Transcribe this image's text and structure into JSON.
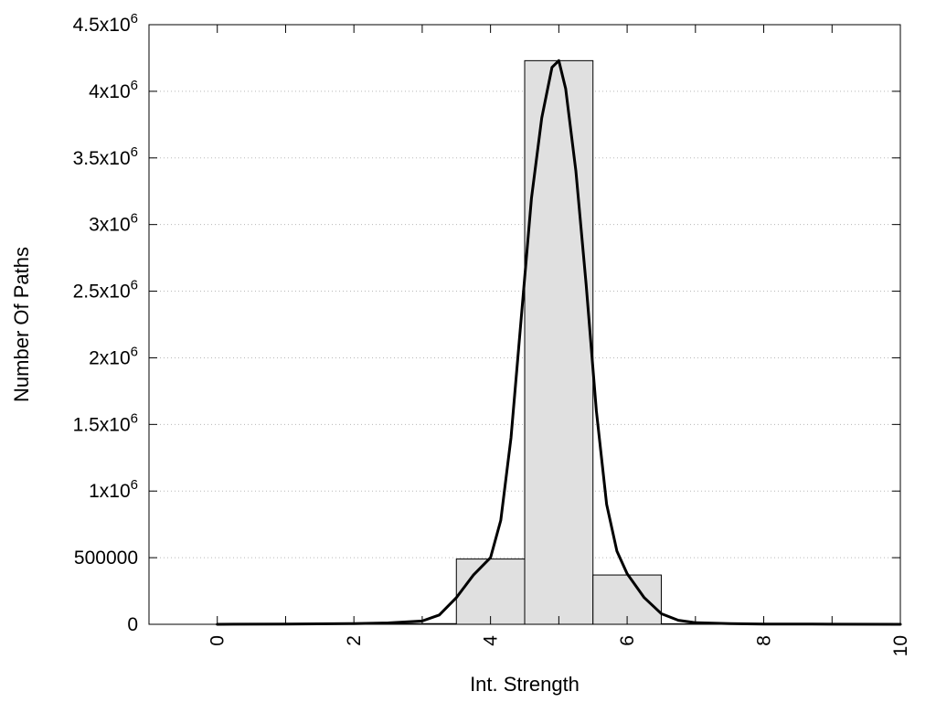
{
  "chart_data": {
    "type": "bar",
    "xlabel": "Int. Strength",
    "ylabel": "Number Of Paths",
    "xlim": [
      -1,
      10
    ],
    "ylim": [
      0,
      4500000
    ],
    "x_ticks": [
      {
        "value": 0,
        "label": "0"
      },
      {
        "value": 2,
        "label": "2"
      },
      {
        "value": 4,
        "label": "4"
      },
      {
        "value": 6,
        "label": "6"
      },
      {
        "value": 8,
        "label": "8"
      },
      {
        "value": 10,
        "label": "10"
      }
    ],
    "x_minor_ticks": [
      1,
      3,
      5,
      7,
      9
    ],
    "y_ticks": [
      {
        "value": 0,
        "label": "0",
        "sup": ""
      },
      {
        "value": 500000,
        "label": "500000",
        "sup": ""
      },
      {
        "value": 1000000,
        "label": "1x10",
        "sup": "6"
      },
      {
        "value": 1500000,
        "label": "1.5x10",
        "sup": "6"
      },
      {
        "value": 2000000,
        "label": "2x10",
        "sup": "6"
      },
      {
        "value": 2500000,
        "label": "2.5x10",
        "sup": "6"
      },
      {
        "value": 3000000,
        "label": "3x10",
        "sup": "6"
      },
      {
        "value": 3500000,
        "label": "3.5x10",
        "sup": "6"
      },
      {
        "value": 4000000,
        "label": "4x10",
        "sup": "6"
      },
      {
        "value": 4500000,
        "label": "4.5x10",
        "sup": "6"
      }
    ],
    "grid": "horizontal dotted",
    "bar_width": 1,
    "bars": [
      {
        "x": 3,
        "value": 5000
      },
      {
        "x": 4,
        "value": 490000
      },
      {
        "x": 5,
        "value": 4230000
      },
      {
        "x": 6,
        "value": 370000
      },
      {
        "x": 7,
        "value": 4000
      }
    ],
    "curve": {
      "x": [
        0,
        1,
        2,
        2.5,
        3,
        3.25,
        3.5,
        3.75,
        4,
        4.15,
        4.3,
        4.45,
        4.6,
        4.75,
        4.9,
        5,
        5.1,
        5.25,
        5.4,
        5.55,
        5.7,
        5.85,
        6,
        6.25,
        6.5,
        6.75,
        7,
        7.5,
        8,
        9,
        10
      ],
      "y": [
        0,
        2000,
        5000,
        10000,
        25000,
        70000,
        200000,
        370000,
        500000,
        780000,
        1400000,
        2300000,
        3200000,
        3800000,
        4180000,
        4230000,
        4020000,
        3400000,
        2550000,
        1600000,
        900000,
        550000,
        380000,
        200000,
        80000,
        30000,
        12000,
        5000,
        2000,
        1000,
        0
      ]
    },
    "colors": {
      "bar_fill": "#e0e0e0",
      "bar_stroke": "#000000",
      "curve": "#000000",
      "grid": "#b8b8b8"
    }
  }
}
